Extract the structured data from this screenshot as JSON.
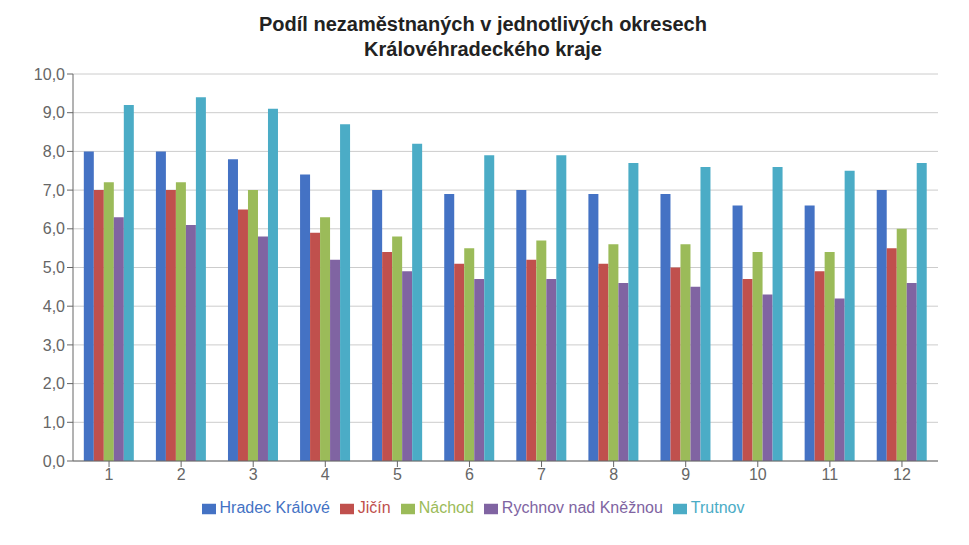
{
  "chart_data": {
    "type": "bar",
    "title": "Podíl nezaměstnaných v jednotlivých okresech\nKrálovéhradeckého kraje",
    "categories": [
      "1",
      "2",
      "3",
      "4",
      "5",
      "6",
      "7",
      "8",
      "9",
      "10",
      "11",
      "12"
    ],
    "series": [
      {
        "name": "Hradec Králové",
        "color": "#4472C4",
        "values": [
          8.0,
          8.0,
          7.8,
          7.4,
          7.0,
          6.9,
          7.0,
          6.9,
          6.9,
          6.6,
          6.6,
          7.0
        ]
      },
      {
        "name": "Jičín",
        "color": "#C0504D",
        "values": [
          7.0,
          7.0,
          6.5,
          5.9,
          5.4,
          5.1,
          5.2,
          5.1,
          5.0,
          4.7,
          4.9,
          5.5
        ]
      },
      {
        "name": "Náchod",
        "color": "#9BBB59",
        "values": [
          7.2,
          7.2,
          7.0,
          6.3,
          5.8,
          5.5,
          5.7,
          5.6,
          5.6,
          5.4,
          5.4,
          6.0
        ]
      },
      {
        "name": "Rychnov nad Kněžnou",
        "color": "#8064A2",
        "values": [
          6.3,
          6.1,
          5.8,
          5.2,
          4.9,
          4.7,
          4.7,
          4.6,
          4.5,
          4.3,
          4.2,
          4.6
        ]
      },
      {
        "name": "Trutnov",
        "color": "#4BACC6",
        "values": [
          9.2,
          9.4,
          9.1,
          8.7,
          8.2,
          7.9,
          7.9,
          7.7,
          7.6,
          7.6,
          7.5,
          7.7
        ]
      }
    ],
    "ylim": [
      0,
      10.0
    ],
    "yticks": [
      {
        "value": 0.0,
        "label": "0,0"
      },
      {
        "value": 1.0,
        "label": "1,0"
      },
      {
        "value": 2.0,
        "label": "2,0"
      },
      {
        "value": 3.0,
        "label": "3,0"
      },
      {
        "value": 4.0,
        "label": "4,0"
      },
      {
        "value": 5.0,
        "label": "5,0"
      },
      {
        "value": 6.0,
        "label": "6,0"
      },
      {
        "value": 7.0,
        "label": "7,0"
      },
      {
        "value": 8.0,
        "label": "8,0"
      },
      {
        "value": 9.0,
        "label": "9,0"
      },
      {
        "value": 10.0,
        "label": "10,0"
      }
    ],
    "grid": true,
    "legend": "bottom"
  }
}
